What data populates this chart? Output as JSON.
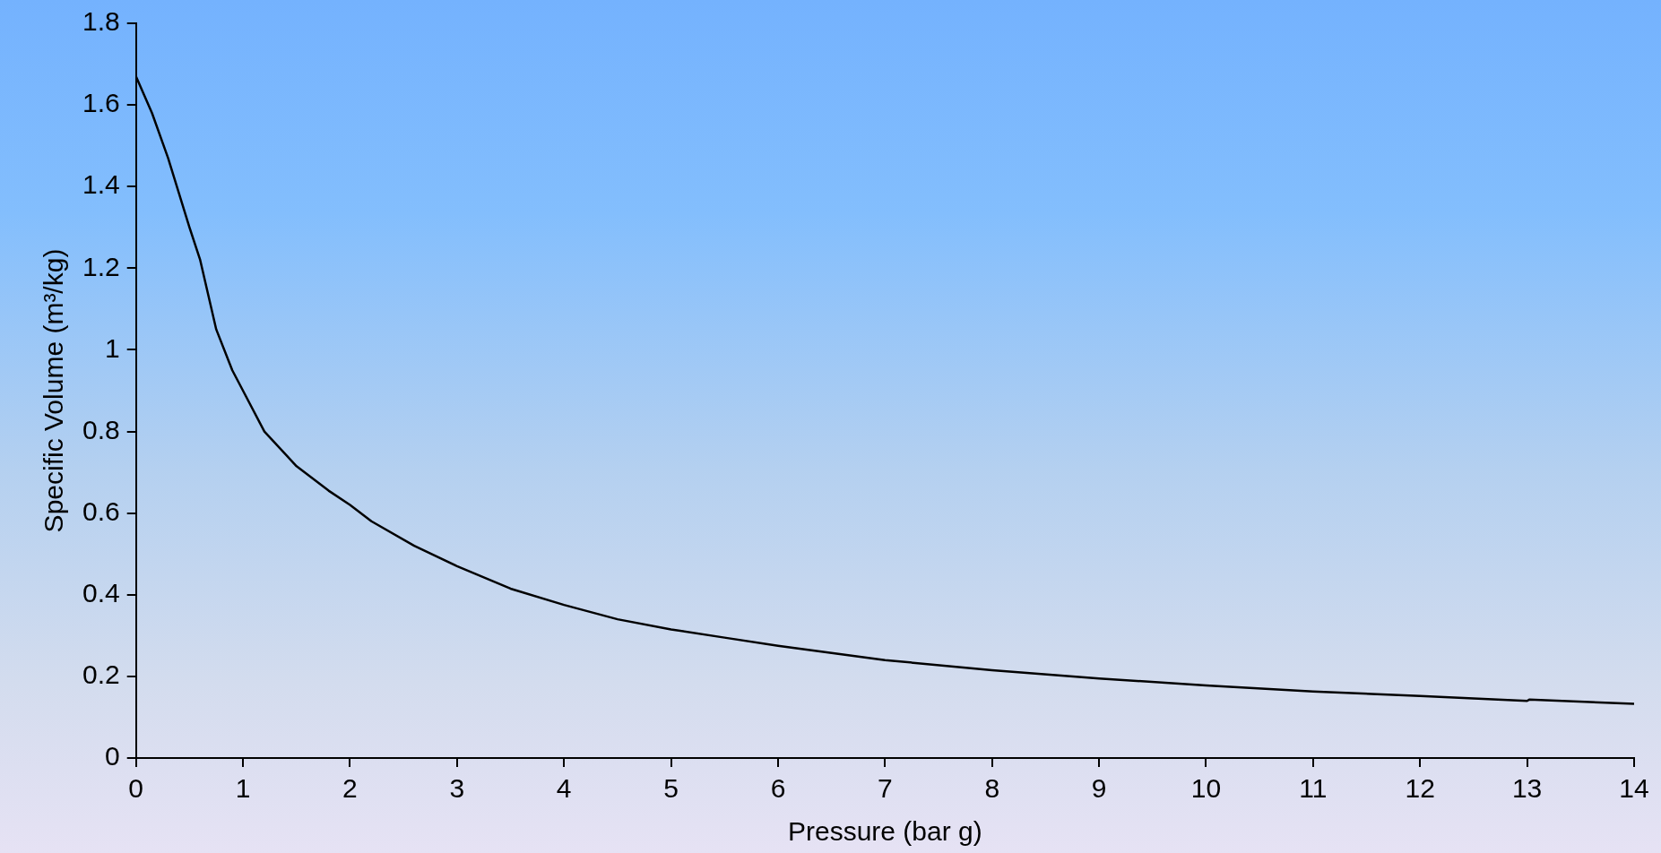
{
  "chart_data": {
    "type": "line",
    "xlabel": "Pressure (bar g)",
    "ylabel": "Specific Volume (m³/kg)",
    "x": [
      0,
      0.15,
      0.3,
      0.5,
      0.6,
      0.75,
      0.9,
      1,
      1.2,
      1.5,
      1.8,
      2,
      2.2,
      2.6,
      3,
      3.5,
      4,
      4.5,
      5,
      5.5,
      6,
      7,
      8,
      9,
      10,
      11,
      12,
      13,
      13.02,
      14
    ],
    "series": [
      {
        "color": "#000000",
        "values": [
          1.67,
          1.58,
          1.47,
          1.3,
          1.22,
          1.05,
          0.95,
          0.9,
          0.8,
          0.715,
          0.655,
          0.62,
          0.58,
          0.52,
          0.47,
          0.415,
          0.375,
          0.34,
          0.315,
          0.295,
          0.275,
          0.24,
          0.215,
          0.195,
          0.178,
          0.163,
          0.152,
          0.14,
          0.143,
          0.133
        ]
      }
    ],
    "xlim": [
      0,
      14
    ],
    "xticks": [
      0,
      1,
      2,
      3,
      4,
      5,
      6,
      7,
      8,
      9,
      10,
      11,
      12,
      13,
      14
    ],
    "ylim": [
      0,
      1.8
    ],
    "yticks": [
      0,
      0.2,
      0.4,
      0.6,
      0.8,
      1,
      1.2,
      1.4,
      1.6,
      1.8
    ],
    "grid": false,
    "legend": false,
    "marker": "none",
    "line_style": "solid"
  }
}
